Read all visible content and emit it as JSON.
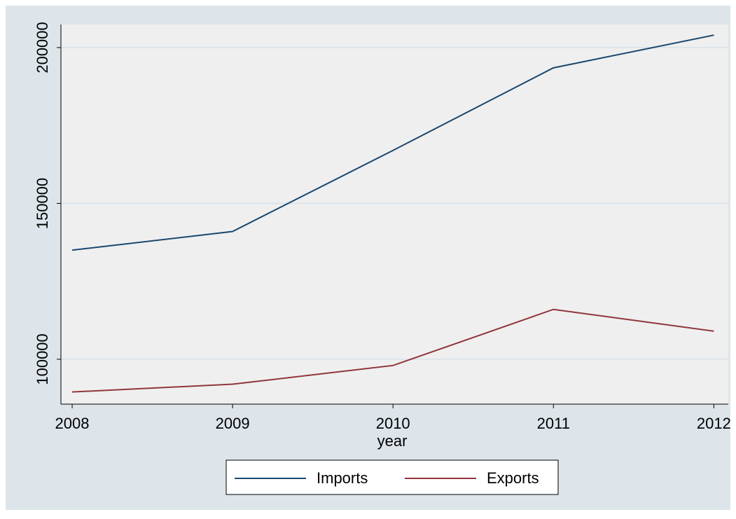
{
  "chart_data": {
    "type": "line",
    "x_label": "year",
    "x": [
      2008,
      2009,
      2010,
      2011,
      2012
    ],
    "series": [
      {
        "name": "Imports",
        "color": "#1a476f",
        "values": [
          135000,
          141000,
          167000,
          193500,
          204000
        ]
      },
      {
        "name": "Exports",
        "color": "#90353b",
        "values": [
          89500,
          92000,
          98000,
          116000,
          109000
        ]
      }
    ],
    "xlim": [
      2007.93,
      2012.09
    ],
    "xticks": [
      2008,
      2009,
      2010,
      2011,
      2012
    ],
    "ylim": [
      85600,
      207400
    ],
    "yticks": [
      100000,
      150000,
      200000
    ],
    "grid": true,
    "legend": "bottom"
  }
}
